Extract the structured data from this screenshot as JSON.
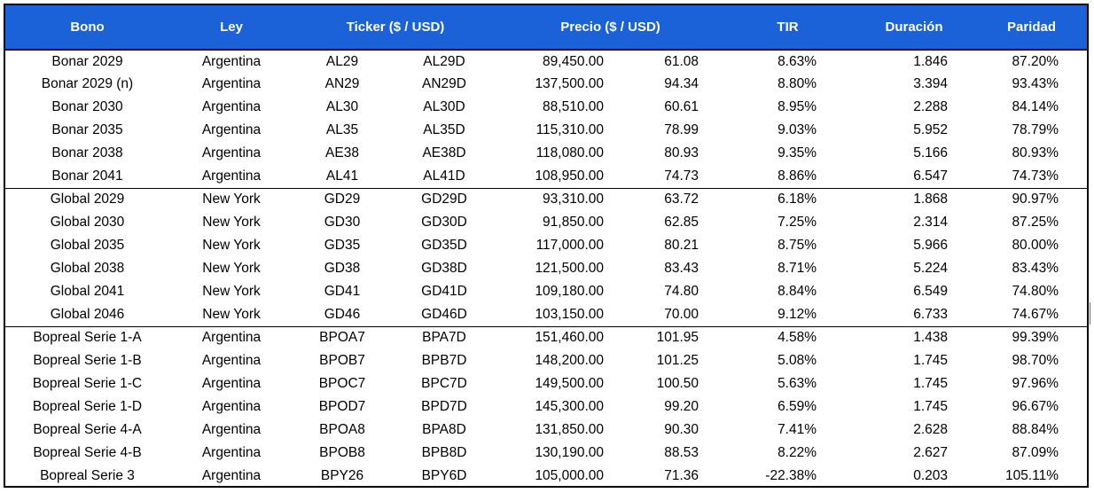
{
  "colors": {
    "header_bg": "#1b62d8",
    "header_text": "#ffffff",
    "border": "#000000"
  },
  "headers": {
    "bono": "Bono",
    "ley": "Ley",
    "ticker": "Ticker ($ / USD)",
    "precio": "Precio ($ / USD)",
    "tir": "TIR",
    "duracion": "Duración",
    "paridad": "Paridad"
  },
  "groups": [
    {
      "rows": [
        {
          "bono": "Bonar 2029",
          "ley": "Argentina",
          "ticker_ars": "AL29",
          "ticker_usd": "AL29D",
          "precio_ars": "89,450.00",
          "precio_usd": "61.08",
          "tir": "8.63%",
          "duracion": "1.846",
          "paridad": "87.20%"
        },
        {
          "bono": "Bonar 2029 (n)",
          "ley": "Argentina",
          "ticker_ars": "AN29",
          "ticker_usd": "AN29D",
          "precio_ars": "137,500.00",
          "precio_usd": "94.34",
          "tir": "8.80%",
          "duracion": "3.394",
          "paridad": "93.43%"
        },
        {
          "bono": "Bonar 2030",
          "ley": "Argentina",
          "ticker_ars": "AL30",
          "ticker_usd": "AL30D",
          "precio_ars": "88,510.00",
          "precio_usd": "60.61",
          "tir": "8.95%",
          "duracion": "2.288",
          "paridad": "84.14%"
        },
        {
          "bono": "Bonar 2035",
          "ley": "Argentina",
          "ticker_ars": "AL35",
          "ticker_usd": "AL35D",
          "precio_ars": "115,310.00",
          "precio_usd": "78.99",
          "tir": "9.03%",
          "duracion": "5.952",
          "paridad": "78.79%"
        },
        {
          "bono": "Bonar 2038",
          "ley": "Argentina",
          "ticker_ars": "AE38",
          "ticker_usd": "AE38D",
          "precio_ars": "118,080.00",
          "precio_usd": "80.93",
          "tir": "9.35%",
          "duracion": "5.166",
          "paridad": "80.93%"
        },
        {
          "bono": "Bonar 2041",
          "ley": "Argentina",
          "ticker_ars": "AL41",
          "ticker_usd": "AL41D",
          "precio_ars": "108,950.00",
          "precio_usd": "74.73",
          "tir": "8.86%",
          "duracion": "6.547",
          "paridad": "74.73%"
        }
      ]
    },
    {
      "rows": [
        {
          "bono": "Global 2029",
          "ley": "New York",
          "ticker_ars": "GD29",
          "ticker_usd": "GD29D",
          "precio_ars": "93,310.00",
          "precio_usd": "63.72",
          "tir": "6.18%",
          "duracion": "1.868",
          "paridad": "90.97%"
        },
        {
          "bono": "Global 2030",
          "ley": "New York",
          "ticker_ars": "GD30",
          "ticker_usd": "GD30D",
          "precio_ars": "91,850.00",
          "precio_usd": "62.85",
          "tir": "7.25%",
          "duracion": "2.314",
          "paridad": "87.25%"
        },
        {
          "bono": "Global 2035",
          "ley": "New York",
          "ticker_ars": "GD35",
          "ticker_usd": "GD35D",
          "precio_ars": "117,000.00",
          "precio_usd": "80.21",
          "tir": "8.75%",
          "duracion": "5.966",
          "paridad": "80.00%"
        },
        {
          "bono": "Global 2038",
          "ley": "New York",
          "ticker_ars": "GD38",
          "ticker_usd": "GD38D",
          "precio_ars": "121,500.00",
          "precio_usd": "83.43",
          "tir": "8.71%",
          "duracion": "5.224",
          "paridad": "83.43%"
        },
        {
          "bono": "Global 2041",
          "ley": "New York",
          "ticker_ars": "GD41",
          "ticker_usd": "GD41D",
          "precio_ars": "109,180.00",
          "precio_usd": "74.80",
          "tir": "8.84%",
          "duracion": "6.549",
          "paridad": "74.80%"
        },
        {
          "bono": "Global 2046",
          "ley": "New York",
          "ticker_ars": "GD46",
          "ticker_usd": "GD46D",
          "precio_ars": "103,150.00",
          "precio_usd": "70.00",
          "tir": "9.12%",
          "duracion": "6.733",
          "paridad": "74.67%"
        }
      ]
    },
    {
      "rows": [
        {
          "bono": "Bopreal Serie 1-A",
          "ley": "Argentina",
          "ticker_ars": "BPOA7",
          "ticker_usd": "BPA7D",
          "precio_ars": "151,460.00",
          "precio_usd": "101.95",
          "tir": "4.58%",
          "duracion": "1.438",
          "paridad": "99.39%"
        },
        {
          "bono": "Bopreal Serie 1-B",
          "ley": "Argentina",
          "ticker_ars": "BPOB7",
          "ticker_usd": "BPB7D",
          "precio_ars": "148,200.00",
          "precio_usd": "101.25",
          "tir": "5.08%",
          "duracion": "1.745",
          "paridad": "98.70%"
        },
        {
          "bono": "Bopreal Serie 1-C",
          "ley": "Argentina",
          "ticker_ars": "BPOC7",
          "ticker_usd": "BPC7D",
          "precio_ars": "149,500.00",
          "precio_usd": "100.50",
          "tir": "5.63%",
          "duracion": "1.745",
          "paridad": "97.96%"
        },
        {
          "bono": "Bopreal Serie 1-D",
          "ley": "Argentina",
          "ticker_ars": "BPOD7",
          "ticker_usd": "BPD7D",
          "precio_ars": "145,300.00",
          "precio_usd": "99.20",
          "tir": "6.59%",
          "duracion": "1.745",
          "paridad": "96.67%"
        },
        {
          "bono": "Bopreal Serie 4-A",
          "ley": "Argentina",
          "ticker_ars": "BPOA8",
          "ticker_usd": "BPA8D",
          "precio_ars": "131,850.00",
          "precio_usd": "90.30",
          "tir": "7.41%",
          "duracion": "2.628",
          "paridad": "88.84%"
        },
        {
          "bono": "Bopreal Serie 4-B",
          "ley": "Argentina",
          "ticker_ars": "BPOB8",
          "ticker_usd": "BPB8D",
          "precio_ars": "130,190.00",
          "precio_usd": "88.53",
          "tir": "8.22%",
          "duracion": "2.627",
          "paridad": "87.09%"
        },
        {
          "bono": "Bopreal Serie 3",
          "ley": "Argentina",
          "ticker_ars": "BPY26",
          "ticker_usd": "BPY6D",
          "precio_ars": "105,000.00",
          "precio_usd": "71.36",
          "tir": "-22.38%",
          "duracion": "0.203",
          "paridad": "105.11%"
        }
      ]
    }
  ]
}
